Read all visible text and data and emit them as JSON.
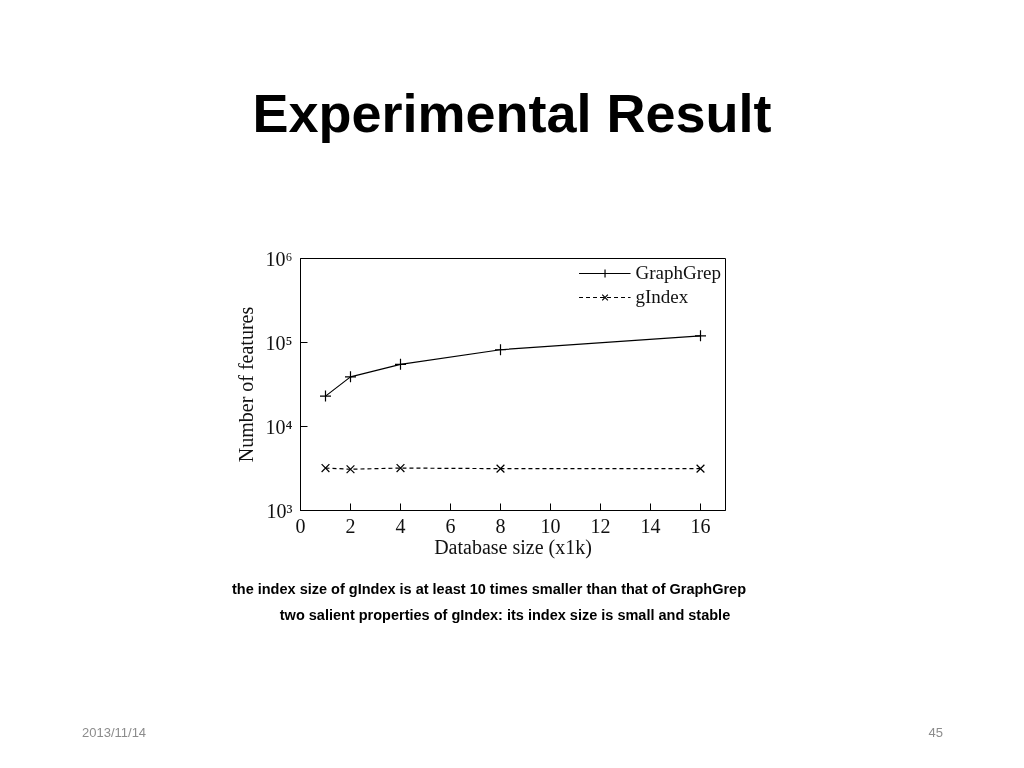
{
  "chart_data": {
    "type": "line",
    "title": "Experimental Result",
    "xlabel": "Database size (x1k)",
    "ylabel": "Number of features",
    "x": [
      1,
      2,
      4,
      8,
      16
    ],
    "series": [
      {
        "name": "GraphGrep",
        "color": "#000000",
        "values": [
          23000,
          39000,
          55000,
          82000,
          120000
        ],
        "marker": "cross",
        "line_style": "solid"
      },
      {
        "name": "gIndex",
        "color": "#000000",
        "values": [
          3200,
          3100,
          3200,
          3150,
          3150
        ],
        "marker": "x",
        "line_style": "dashed"
      }
    ],
    "xlim": [
      0,
      17
    ],
    "ylim": [
      1000,
      1000000
    ],
    "xticks": [
      0,
      2,
      4,
      6,
      8,
      10,
      12,
      14,
      16
    ],
    "yticks": [
      {
        "value": 1000,
        "label": "10³"
      },
      {
        "value": 10000,
        "label": "10⁴"
      },
      {
        "value": 100000,
        "label": "10⁵"
      },
      {
        "value": 1000000,
        "label": "10⁶"
      }
    ],
    "log": "y",
    "grid": false,
    "legend": "top right",
    "annotations": [
      "the index size of gIndex is at least 10 times smaller than that of GraphGrep",
      "two salient properties of gIndex: its index size is small and stable",
      "2013/11/14",
      "45"
    ]
  }
}
